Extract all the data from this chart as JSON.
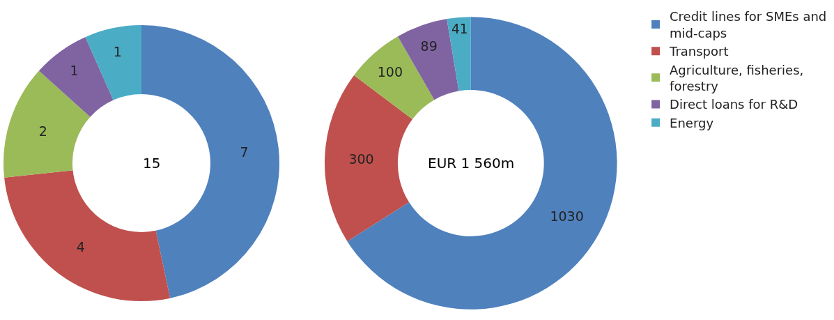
{
  "chart_data": [
    {
      "type": "donut",
      "categories": [
        "Credit lines for SMEs and mid-caps",
        "Transport",
        "Agriculture, fisheries, forestry",
        "Direct loans for R&D",
        "Energy"
      ],
      "values": [
        7,
        4,
        2,
        1,
        1
      ],
      "colors": [
        "#4f81bd",
        "#c0504d",
        "#9bbb59",
        "#8064a2",
        "#4bacc6"
      ],
      "data_labels": true,
      "annotations": [
        "15"
      ],
      "legend": "right"
    },
    {
      "type": "donut",
      "categories": [
        null,
        null,
        null,
        null,
        null
      ],
      "values": [
        1030,
        300,
        100,
        89,
        41
      ],
      "colors": [
        "#4f81bd",
        "#c0504d",
        "#9bbb59",
        "#8064a2",
        "#4bacc6"
      ],
      "data_labels": true,
      "annotations": [
        "EUR 1 560m"
      ]
    }
  ]
}
